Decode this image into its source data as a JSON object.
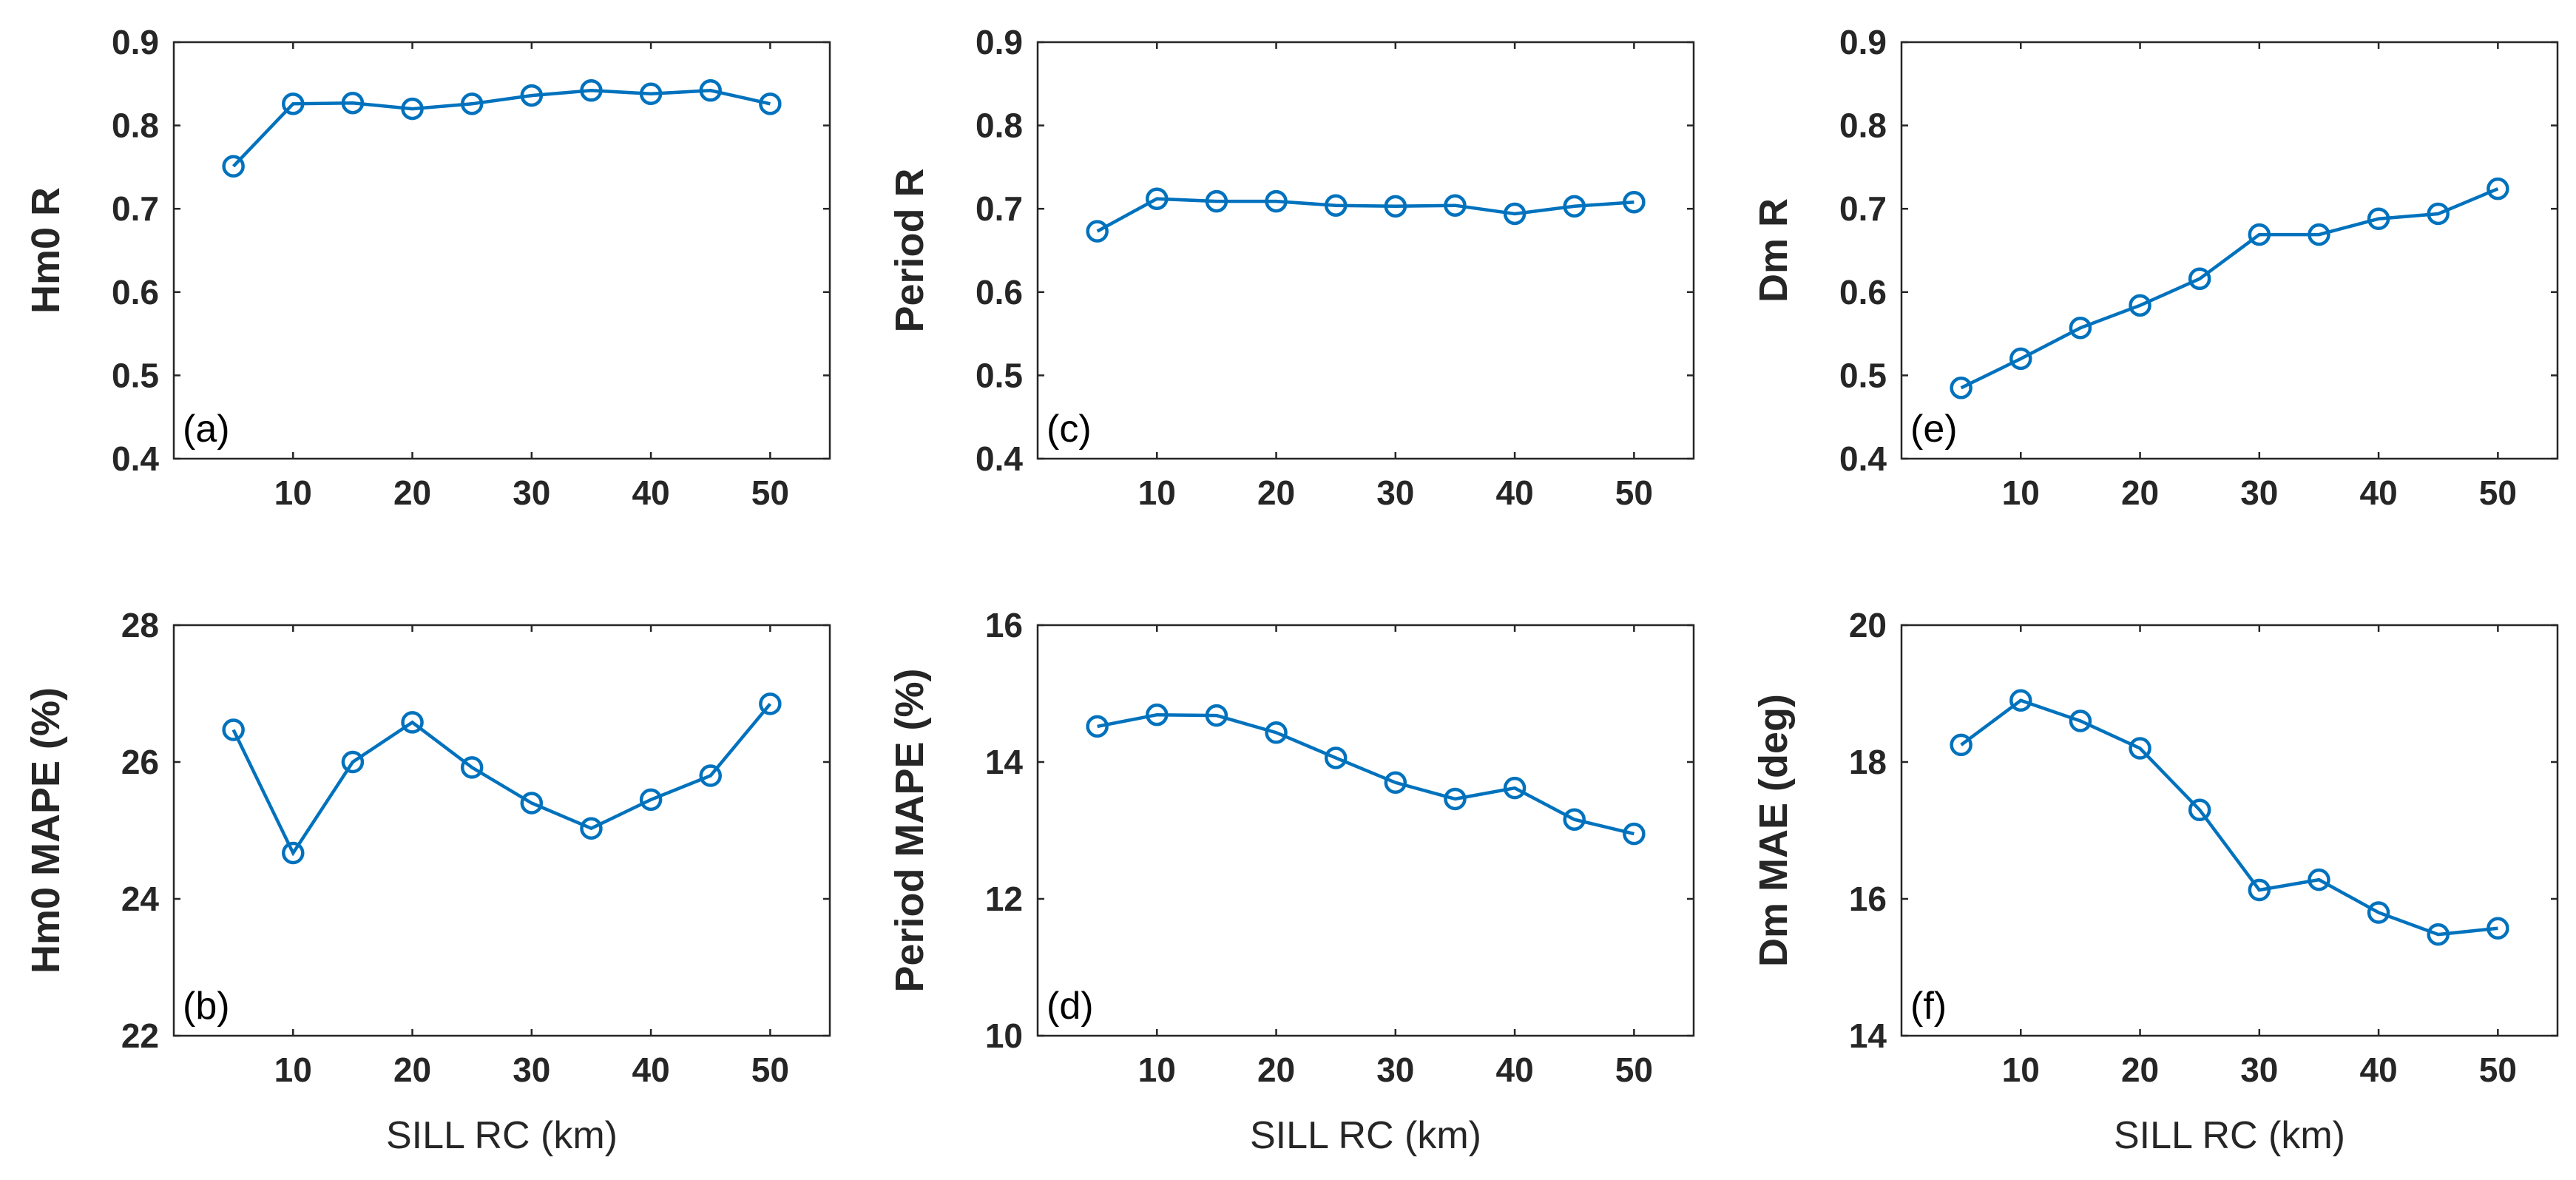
{
  "colors": {
    "series": "#0072BD",
    "axis": "#262626",
    "background": "#ffffff"
  },
  "chart_data": [
    {
      "id": "a",
      "type": "line",
      "panel_label": "(a)",
      "title": "",
      "xlabel": "",
      "ylabel": "Hm0 R",
      "x": [
        5,
        10,
        15,
        20,
        25,
        30,
        35,
        40,
        45,
        50
      ],
      "series": [
        {
          "name": "Hm0 R",
          "values": [
            0.751,
            0.826,
            0.827,
            0.82,
            0.826,
            0.836,
            0.842,
            0.838,
            0.842,
            0.826
          ]
        }
      ],
      "xlim": [
        0,
        55
      ],
      "ylim": [
        0.4,
        0.9
      ],
      "xticks": [
        10,
        20,
        30,
        40,
        50
      ],
      "xtick_labels": [
        "10",
        "20",
        "30",
        "40",
        "50"
      ],
      "yticks": [
        0.4,
        0.5,
        0.6,
        0.7,
        0.8,
        0.9
      ],
      "ytick_labels": [
        "0.4",
        "0.5",
        "0.6",
        "0.7",
        "0.8",
        "0.9"
      ],
      "grid": false,
      "marker": "circle"
    },
    {
      "id": "c",
      "type": "line",
      "panel_label": "(c)",
      "title": "",
      "xlabel": "",
      "ylabel": "Period R",
      "x": [
        5,
        10,
        15,
        20,
        25,
        30,
        35,
        40,
        45,
        50
      ],
      "series": [
        {
          "name": "Period R",
          "values": [
            0.673,
            0.712,
            0.709,
            0.709,
            0.704,
            0.703,
            0.704,
            0.694,
            0.703,
            0.708
          ]
        }
      ],
      "xlim": [
        0,
        55
      ],
      "ylim": [
        0.4,
        0.9
      ],
      "xticks": [
        10,
        20,
        30,
        40,
        50
      ],
      "xtick_labels": [
        "10",
        "20",
        "30",
        "40",
        "50"
      ],
      "yticks": [
        0.4,
        0.5,
        0.6,
        0.7,
        0.8,
        0.9
      ],
      "ytick_labels": [
        "0.4",
        "0.5",
        "0.6",
        "0.7",
        "0.8",
        "0.9"
      ],
      "grid": false,
      "marker": "circle"
    },
    {
      "id": "e",
      "type": "line",
      "panel_label": "(e)",
      "title": "",
      "xlabel": "",
      "ylabel": "Dm R",
      "x": [
        5,
        10,
        15,
        20,
        25,
        30,
        35,
        40,
        45,
        50
      ],
      "series": [
        {
          "name": "Dm R",
          "values": [
            0.485,
            0.52,
            0.557,
            0.584,
            0.616,
            0.669,
            0.669,
            0.688,
            0.694,
            0.724
          ]
        }
      ],
      "xlim": [
        0,
        55
      ],
      "ylim": [
        0.4,
        0.9
      ],
      "xticks": [
        10,
        20,
        30,
        40,
        50
      ],
      "xtick_labels": [
        "10",
        "20",
        "30",
        "40",
        "50"
      ],
      "yticks": [
        0.4,
        0.5,
        0.6,
        0.7,
        0.8,
        0.9
      ],
      "ytick_labels": [
        "0.4",
        "0.5",
        "0.6",
        "0.7",
        "0.8",
        "0.9"
      ],
      "grid": false,
      "marker": "circle"
    },
    {
      "id": "b",
      "type": "line",
      "panel_label": "(b)",
      "title": "",
      "xlabel": "SILL RC (km)",
      "ylabel": "Hm0 MAPE (%)",
      "x": [
        5,
        10,
        15,
        20,
        25,
        30,
        35,
        40,
        45,
        50
      ],
      "series": [
        {
          "name": "Hm0 MAPE",
          "values": [
            26.47,
            24.67,
            26.0,
            26.58,
            25.92,
            25.4,
            25.03,
            25.45,
            25.8,
            26.85
          ]
        }
      ],
      "xlim": [
        0,
        55
      ],
      "ylim": [
        22,
        28
      ],
      "xticks": [
        10,
        20,
        30,
        40,
        50
      ],
      "xtick_labels": [
        "10",
        "20",
        "30",
        "40",
        "50"
      ],
      "yticks": [
        22,
        24,
        26,
        28
      ],
      "ytick_labels": [
        "22",
        "24",
        "26",
        "28"
      ],
      "grid": false,
      "marker": "circle"
    },
    {
      "id": "d",
      "type": "line",
      "panel_label": "(d)",
      "title": "",
      "xlabel": "SILL RC (km)",
      "ylabel": "Period MAPE (%)",
      "x": [
        5,
        10,
        15,
        20,
        25,
        30,
        35,
        40,
        45,
        50
      ],
      "series": [
        {
          "name": "Period MAPE",
          "values": [
            14.52,
            14.69,
            14.68,
            14.43,
            14.06,
            13.7,
            13.46,
            13.62,
            13.16,
            12.95
          ]
        }
      ],
      "xlim": [
        0,
        55
      ],
      "ylim": [
        10,
        16
      ],
      "xticks": [
        10,
        20,
        30,
        40,
        50
      ],
      "xtick_labels": [
        "10",
        "20",
        "30",
        "40",
        "50"
      ],
      "yticks": [
        10,
        12,
        14,
        16
      ],
      "ytick_labels": [
        "10",
        "12",
        "14",
        "16"
      ],
      "grid": false,
      "marker": "circle"
    },
    {
      "id": "f",
      "type": "line",
      "panel_label": "(f)",
      "title": "",
      "xlabel": "SILL RC (km)",
      "ylabel": "Dm MAE (deg)",
      "x": [
        5,
        10,
        15,
        20,
        25,
        30,
        35,
        40,
        45,
        50
      ],
      "series": [
        {
          "name": "Dm MAE",
          "values": [
            18.25,
            18.9,
            18.6,
            18.2,
            17.3,
            16.13,
            16.28,
            15.8,
            15.48,
            15.57
          ]
        }
      ],
      "xlim": [
        0,
        55
      ],
      "ylim": [
        14,
        20
      ],
      "xticks": [
        10,
        20,
        30,
        40,
        50
      ],
      "xtick_labels": [
        "10",
        "20",
        "30",
        "40",
        "50"
      ],
      "yticks": [
        14,
        16,
        18,
        20
      ],
      "ytick_labels": [
        "14",
        "16",
        "18",
        "20"
      ],
      "grid": false,
      "marker": "circle"
    }
  ]
}
